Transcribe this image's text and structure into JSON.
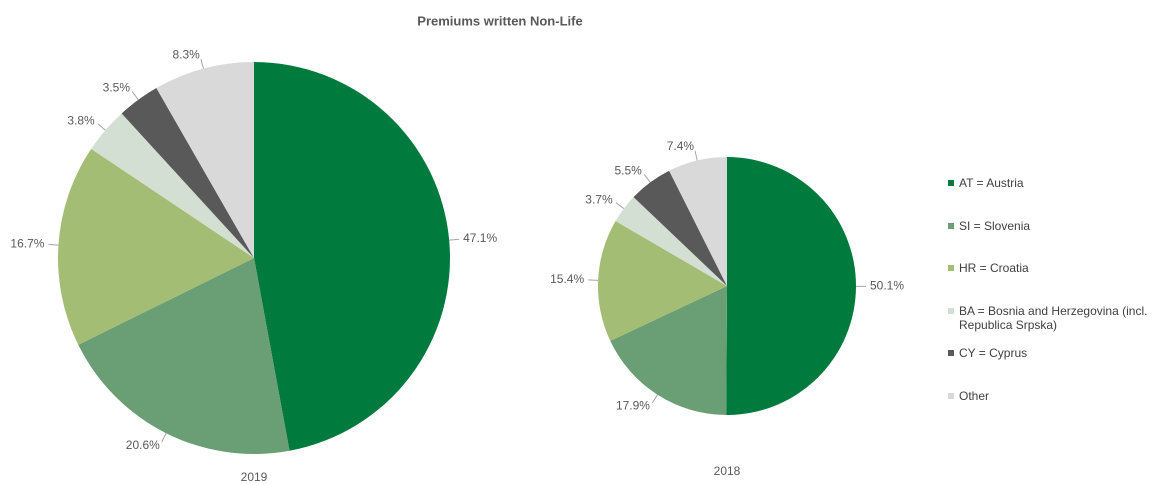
{
  "title": "Premiums written Non-Life",
  "legend": [
    "AT = Austria",
    "SI = Slovenia",
    "HR = Croatia",
    "BA = Bosnia and Herzegovina (incl. Republica Srpska)",
    "CY = Cyprus",
    "Other"
  ],
  "colors": [
    "#007a3d",
    "#6a9e74",
    "#a3be74",
    "#d3dfd3",
    "#595959",
    "#d9d9d9"
  ],
  "chart_data": [
    {
      "type": "pie",
      "caption": "2019",
      "values": [
        47.1,
        20.6,
        16.7,
        3.8,
        3.5,
        8.3
      ],
      "value_labels": [
        "47.1%",
        "20.6%",
        "16.7%",
        "3.8%",
        "3.5%",
        "8.3%"
      ]
    },
    {
      "type": "pie",
      "caption": "2018",
      "values": [
        50.1,
        17.9,
        15.4,
        3.7,
        5.5,
        7.4
      ],
      "value_labels": [
        "50.1%",
        "17.9%",
        "15.4%",
        "3.7%",
        "5.5%",
        "7.4%"
      ]
    }
  ]
}
